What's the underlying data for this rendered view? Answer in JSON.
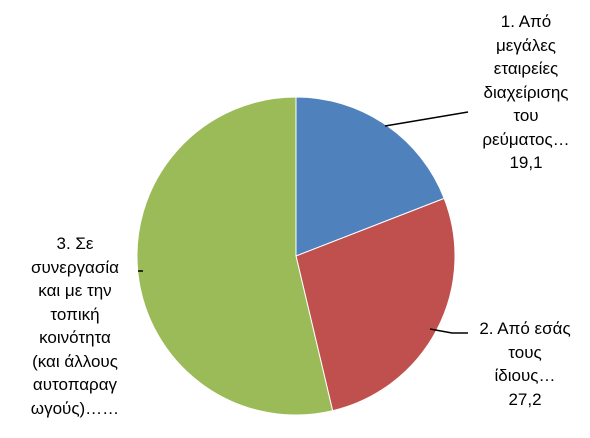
{
  "chart_data": {
    "type": "pie",
    "title": "",
    "slices": [
      {
        "label_lines": [
          "1. Από",
          "μεγάλες",
          "εταιρείες",
          "διαχείρισης",
          "του",
          "ρεύματος…",
          "19,1"
        ],
        "value": 19.1,
        "color": "#4F81BD"
      },
      {
        "label_lines": [
          "2. Από εσάς",
          "τους",
          "ίδιους…",
          "27,2"
        ],
        "value": 27.2,
        "color": "#C0504D"
      },
      {
        "label_lines": [
          "3. Σε",
          "συνεργασία",
          "και με την",
          "τοπική",
          "κοινότητα",
          "(και άλλους",
          "αυτοπαραγ",
          "ωγούς)……"
        ],
        "value": 53.7,
        "color": "#9BBB59"
      }
    ],
    "legend": "none"
  }
}
